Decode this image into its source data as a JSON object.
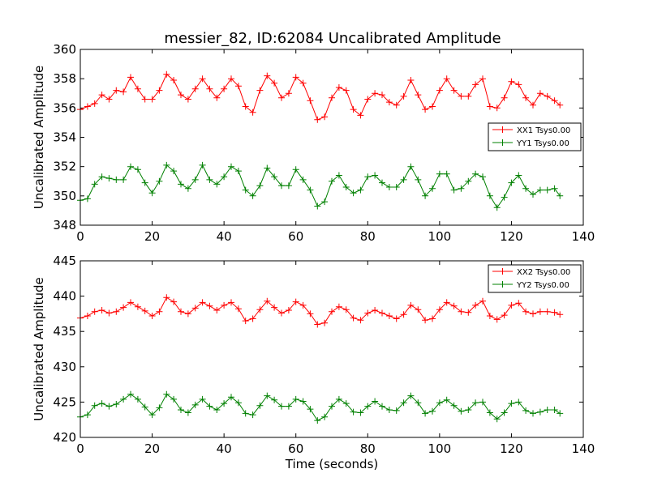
{
  "title": "messier_82, ID:62084 Uncalibrated Amplitude",
  "colors": {
    "xx": "#ff0000",
    "yy": "#008000"
  },
  "chart_data": [
    {
      "type": "line",
      "marker": "plus",
      "xlabel": "",
      "ylabel": "Uncalibrated Amplitude",
      "xlim": [
        0,
        140
      ],
      "ylim": [
        348,
        360
      ],
      "xticks": [
        "0",
        "20",
        "40",
        "60",
        "80",
        "100",
        "120",
        "140"
      ],
      "yticks": [
        "348",
        "350",
        "352",
        "354",
        "356",
        "358",
        "360"
      ],
      "legend_position": "right",
      "x": [
        0,
        2,
        4,
        6,
        8,
        10,
        12,
        14,
        16,
        18,
        20,
        22,
        24,
        26,
        28,
        30,
        32,
        34,
        36,
        38,
        40,
        42,
        44,
        46,
        48,
        50,
        52,
        54,
        56,
        58,
        60,
        62,
        64,
        66,
        68,
        70,
        72,
        74,
        76,
        78,
        80,
        82,
        84,
        86,
        88,
        90,
        92,
        94,
        96,
        98,
        100,
        102,
        104,
        106,
        108,
        110,
        112,
        114,
        116,
        118,
        120,
        122,
        124,
        126,
        128,
        130,
        132,
        133.5
      ],
      "series": [
        {
          "name": "XX1 Tsys0.00",
          "color": "#ff0000",
          "values": [
            355.9,
            356.1,
            356.3,
            356.9,
            356.6,
            357.2,
            357.1,
            358.1,
            357.3,
            356.6,
            356.6,
            357.2,
            358.3,
            357.9,
            356.9,
            356.6,
            357.3,
            358.0,
            357.3,
            356.7,
            357.3,
            358.0,
            357.5,
            356.1,
            355.7,
            357.2,
            358.2,
            357.7,
            356.7,
            357.0,
            358.1,
            357.7,
            356.5,
            355.2,
            355.4,
            356.7,
            357.4,
            357.2,
            355.9,
            355.5,
            356.6,
            357.0,
            356.9,
            356.4,
            356.2,
            356.8,
            357.9,
            356.9,
            355.9,
            356.1,
            357.2,
            358.0,
            357.2,
            356.8,
            356.8,
            357.6,
            358.0,
            356.1,
            356.0,
            356.7,
            357.8,
            357.6,
            356.7,
            356.2,
            357.0,
            356.8,
            356.5,
            356.2
          ]
        },
        {
          "name": "YY1 Tsys0.00",
          "color": "#008000",
          "values": [
            349.7,
            349.8,
            350.8,
            351.3,
            351.2,
            351.1,
            351.1,
            352.0,
            351.8,
            350.9,
            350.2,
            351.0,
            352.1,
            351.7,
            350.8,
            350.5,
            351.1,
            352.1,
            351.1,
            350.8,
            351.3,
            352.0,
            351.7,
            350.4,
            350.0,
            350.7,
            351.9,
            351.3,
            350.7,
            350.7,
            351.8,
            351.1,
            350.4,
            349.3,
            349.6,
            351.0,
            351.4,
            350.6,
            350.2,
            350.4,
            351.3,
            351.4,
            350.9,
            350.6,
            350.6,
            351.1,
            352.0,
            351.1,
            350.0,
            350.5,
            351.5,
            351.5,
            350.4,
            350.5,
            351.0,
            351.5,
            351.3,
            350.0,
            349.2,
            349.9,
            350.9,
            351.4,
            350.5,
            350.1,
            350.4,
            350.4,
            350.5,
            350.0
          ]
        }
      ]
    },
    {
      "type": "line",
      "marker": "plus",
      "xlabel": "Time (seconds)",
      "ylabel": "Uncalibrated Amplitude",
      "xlim": [
        0,
        140
      ],
      "ylim": [
        420,
        445
      ],
      "xticks": [
        "0",
        "20",
        "40",
        "60",
        "80",
        "100",
        "120",
        "140"
      ],
      "yticks": [
        "420",
        "425",
        "430",
        "435",
        "440",
        "445"
      ],
      "legend_position": "top-right",
      "x": [
        0,
        2,
        4,
        6,
        8,
        10,
        12,
        14,
        16,
        18,
        20,
        22,
        24,
        26,
        28,
        30,
        32,
        34,
        36,
        38,
        40,
        42,
        44,
        46,
        48,
        50,
        52,
        54,
        56,
        58,
        60,
        62,
        64,
        66,
        68,
        70,
        72,
        74,
        76,
        78,
        80,
        82,
        84,
        86,
        88,
        90,
        92,
        94,
        96,
        98,
        100,
        102,
        104,
        106,
        108,
        110,
        112,
        114,
        116,
        118,
        120,
        122,
        124,
        126,
        128,
        130,
        132,
        133.5
      ],
      "series": [
        {
          "name": "XX2 Tsys0.00",
          "color": "#ff0000",
          "values": [
            436.9,
            437.2,
            437.8,
            438.0,
            437.6,
            437.8,
            438.4,
            439.1,
            438.5,
            437.9,
            437.2,
            437.8,
            439.8,
            439.2,
            437.8,
            437.5,
            438.3,
            439.1,
            438.6,
            438.0,
            438.7,
            439.1,
            438.2,
            436.5,
            436.8,
            438.1,
            439.3,
            438.4,
            437.6,
            438.0,
            439.2,
            438.7,
            437.5,
            436.0,
            436.2,
            437.8,
            438.5,
            438.1,
            436.9,
            436.6,
            437.6,
            438.0,
            437.6,
            437.2,
            436.8,
            437.4,
            438.7,
            438.1,
            436.6,
            436.8,
            438.1,
            439.1,
            438.6,
            437.8,
            437.7,
            438.7,
            439.3,
            437.2,
            436.7,
            437.3,
            438.7,
            439.0,
            437.8,
            437.5,
            437.8,
            437.8,
            437.7,
            437.4
          ]
        },
        {
          "name": "YY2 Tsys0.00",
          "color": "#008000",
          "values": [
            422.9,
            423.2,
            424.5,
            424.8,
            424.4,
            424.7,
            425.4,
            426.1,
            425.4,
            424.3,
            423.2,
            424.2,
            426.1,
            425.4,
            423.9,
            423.5,
            424.6,
            425.4,
            424.4,
            423.9,
            424.8,
            425.7,
            424.9,
            423.4,
            423.2,
            424.5,
            425.9,
            425.3,
            424.4,
            424.4,
            425.4,
            425.1,
            424.0,
            422.4,
            422.9,
            424.4,
            425.4,
            424.8,
            423.6,
            423.5,
            424.4,
            425.1,
            424.4,
            423.9,
            423.8,
            424.9,
            425.9,
            424.9,
            423.4,
            423.7,
            424.9,
            425.3,
            424.5,
            423.7,
            423.9,
            424.9,
            425.0,
            423.5,
            422.6,
            423.5,
            424.8,
            425.0,
            423.8,
            423.4,
            423.6,
            423.9,
            423.9,
            423.4
          ]
        }
      ]
    }
  ]
}
